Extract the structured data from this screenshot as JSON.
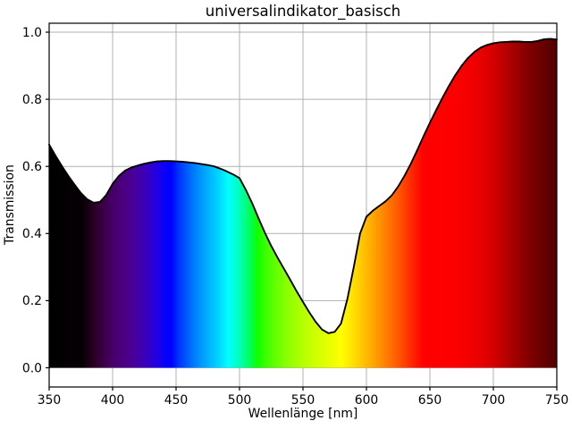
{
  "figure": {
    "background": "#ffffff"
  },
  "chart_data": {
    "type": "area",
    "title": "universalindikator_basisch",
    "xlabel": "Wellenlänge [nm]",
    "ylabel": "Transmission",
    "xlim": [
      350,
      750
    ],
    "ylim": [
      0.0,
      1.0
    ],
    "grid": true,
    "grid_color": "#b0b0b0",
    "line_color": "#000000",
    "x_ticks": [
      350,
      400,
      450,
      500,
      550,
      600,
      650,
      700,
      750
    ],
    "x_tick_labels": [
      "350",
      "400",
      "450",
      "500",
      "550",
      "600",
      "650",
      "700",
      "750"
    ],
    "y_ticks": [
      0.0,
      0.2,
      0.4,
      0.6,
      0.8,
      1.0
    ],
    "y_tick_labels": [
      "0.0",
      "0.2",
      "0.4",
      "0.6",
      "0.8",
      "1.0"
    ],
    "series": [
      {
        "name": "Transmission",
        "x": [
          350,
          355,
          360,
          365,
          370,
          375,
          380,
          385,
          390,
          395,
          400,
          405,
          410,
          415,
          420,
          425,
          430,
          435,
          440,
          445,
          450,
          455,
          460,
          465,
          470,
          475,
          480,
          485,
          490,
          495,
          500,
          505,
          510,
          515,
          520,
          525,
          530,
          535,
          540,
          545,
          550,
          555,
          560,
          565,
          570,
          575,
          580,
          585,
          590,
          595,
          600,
          605,
          610,
          615,
          620,
          625,
          630,
          635,
          640,
          645,
          650,
          655,
          660,
          665,
          670,
          675,
          680,
          685,
          690,
          695,
          700,
          705,
          710,
          715,
          720,
          725,
          730,
          735,
          740,
          745,
          750
        ],
        "values": [
          0.665,
          0.632,
          0.601,
          0.572,
          0.546,
          0.521,
          0.502,
          0.492,
          0.494,
          0.515,
          0.548,
          0.572,
          0.588,
          0.597,
          0.603,
          0.608,
          0.612,
          0.615,
          0.616,
          0.616,
          0.615,
          0.614,
          0.612,
          0.61,
          0.607,
          0.604,
          0.6,
          0.593,
          0.585,
          0.576,
          0.565,
          0.53,
          0.49,
          0.445,
          0.402,
          0.363,
          0.328,
          0.295,
          0.262,
          0.228,
          0.196,
          0.165,
          0.137,
          0.114,
          0.103,
          0.107,
          0.132,
          0.205,
          0.3,
          0.4,
          0.45,
          0.468,
          0.482,
          0.496,
          0.514,
          0.54,
          0.572,
          0.608,
          0.648,
          0.69,
          0.73,
          0.768,
          0.805,
          0.84,
          0.872,
          0.9,
          0.923,
          0.941,
          0.954,
          0.962,
          0.967,
          0.97,
          0.971,
          0.972,
          0.972,
          0.971,
          0.971,
          0.974,
          0.979,
          0.98,
          0.978
        ]
      }
    ],
    "fill_description": "area under curve filled with visible-light spectrum gradient by wavelength",
    "spectrum_gradient_stops": [
      [
        350,
        "#000000"
      ],
      [
        376,
        "#060004"
      ],
      [
        382,
        "#1c0016"
      ],
      [
        388,
        "#31002e"
      ],
      [
        394,
        "#3d004d"
      ],
      [
        400,
        "#450066"
      ],
      [
        406,
        "#4a0078"
      ],
      [
        412,
        "#4b0089"
      ],
      [
        418,
        "#46009f"
      ],
      [
        424,
        "#3d00b5"
      ],
      [
        430,
        "#2f00cd"
      ],
      [
        436,
        "#1c00e8"
      ],
      [
        442,
        "#0600fb"
      ],
      [
        446,
        "#0000ff"
      ],
      [
        452,
        "#0032ff"
      ],
      [
        460,
        "#0064ff"
      ],
      [
        468,
        "#0090ff"
      ],
      [
        476,
        "#00b4ff"
      ],
      [
        484,
        "#00d8ff"
      ],
      [
        491,
        "#00ffff"
      ],
      [
        497,
        "#00ffd2"
      ],
      [
        503,
        "#00ff96"
      ],
      [
        509,
        "#00ff50"
      ],
      [
        514,
        "#0eff00"
      ],
      [
        520,
        "#37ff00"
      ],
      [
        528,
        "#62ff00"
      ],
      [
        536,
        "#85ff00"
      ],
      [
        544,
        "#a1ff00"
      ],
      [
        552,
        "#baff00"
      ],
      [
        560,
        "#cfff00"
      ],
      [
        568,
        "#e1ff00"
      ],
      [
        574,
        "#eeff00"
      ],
      [
        580,
        "#ffff00"
      ],
      [
        588,
        "#ffe500"
      ],
      [
        596,
        "#ffc800"
      ],
      [
        604,
        "#ffab00"
      ],
      [
        612,
        "#ff8c00"
      ],
      [
        620,
        "#ff6c00"
      ],
      [
        628,
        "#ff4a00"
      ],
      [
        636,
        "#ff2600"
      ],
      [
        644,
        "#ff0400"
      ],
      [
        648,
        "#ff0000"
      ],
      [
        672,
        "#fb0000"
      ],
      [
        690,
        "#e90000"
      ],
      [
        700,
        "#d40000"
      ],
      [
        712,
        "#b00000"
      ],
      [
        724,
        "#8c0000"
      ],
      [
        736,
        "#6d0000"
      ],
      [
        744,
        "#5e0000"
      ],
      [
        750,
        "#550000"
      ]
    ]
  }
}
